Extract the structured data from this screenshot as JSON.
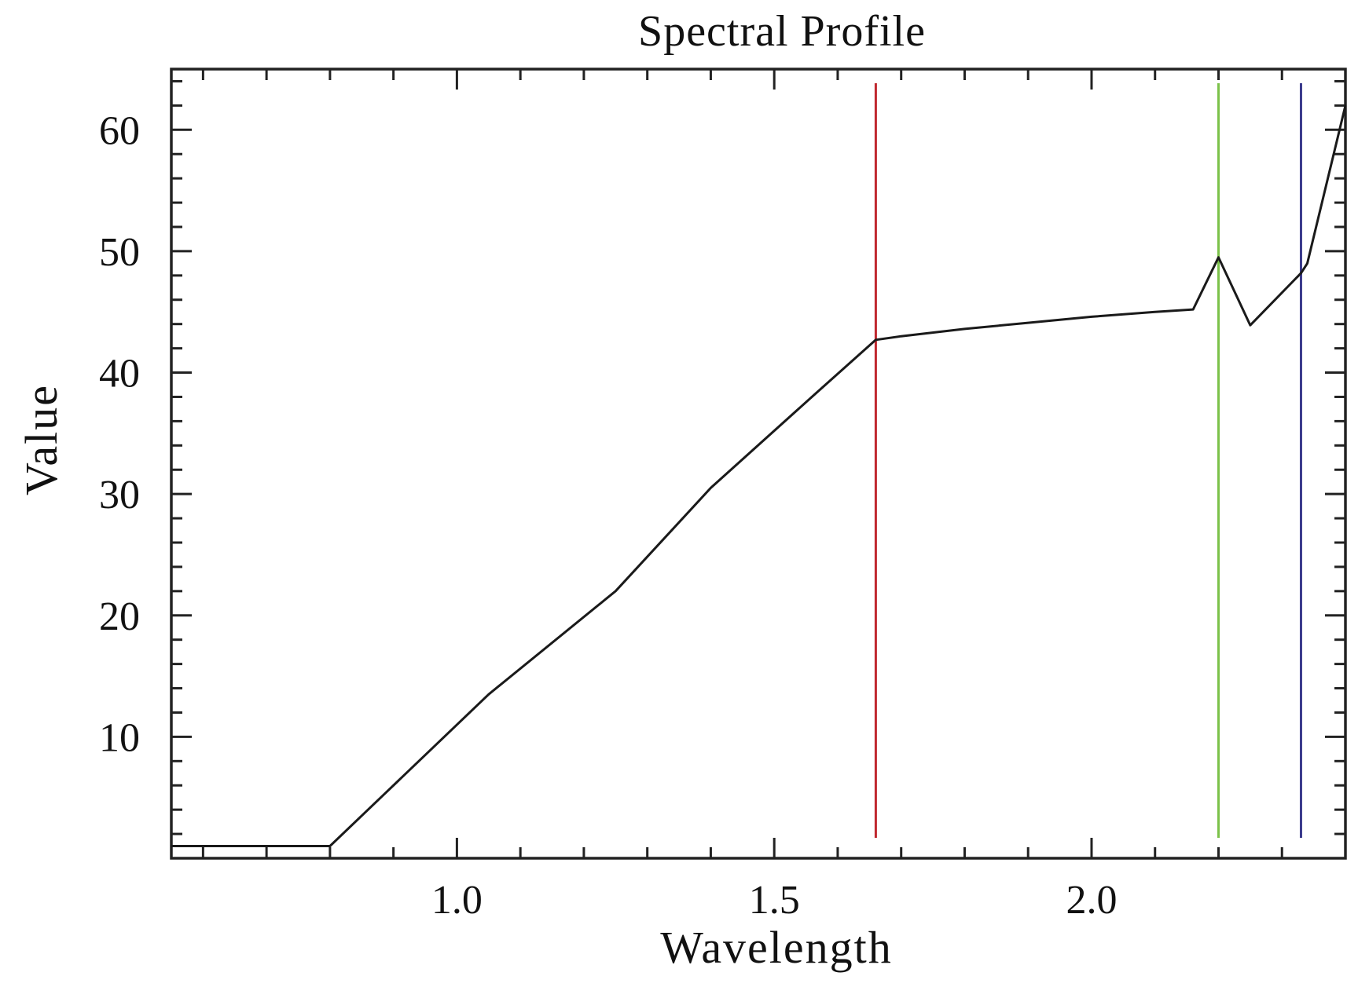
{
  "chart_data": {
    "type": "line",
    "title": "Spectral Profile",
    "xlabel": "Wavelength",
    "ylabel": "Value",
    "xlim": [
      0.55,
      2.4
    ],
    "ylim": [
      0,
      65
    ],
    "x_ticks": [
      1.0,
      1.5,
      2.0
    ],
    "x_tick_labels": [
      "1.0",
      "1.5",
      "2.0"
    ],
    "y_ticks": [
      10,
      20,
      30,
      40,
      50,
      60
    ],
    "y_tick_labels": [
      "10",
      "20",
      "30",
      "40",
      "50",
      "60"
    ],
    "x_minor_step": 0.1,
    "y_minor_step": 2,
    "grid": false,
    "series": [
      {
        "color": "#1a1a1a",
        "x": [
          0.55,
          0.8,
          0.88,
          1.05,
          1.25,
          1.4,
          1.57,
          1.66,
          1.7,
          1.8,
          1.9,
          2.0,
          2.1,
          2.16,
          2.2,
          2.25,
          2.33,
          2.34,
          2.4
        ],
        "y": [
          1.0,
          1.0,
          5.0,
          13.5,
          22.0,
          30.5,
          38.5,
          42.7,
          43.0,
          43.6,
          44.1,
          44.6,
          45.0,
          45.2,
          49.5,
          43.9,
          48.2,
          49.0,
          62.0
        ]
      }
    ],
    "vertical_markers": [
      {
        "x": 1.66,
        "color": "#c0282f"
      },
      {
        "x": 2.2,
        "color": "#7cc24a"
      },
      {
        "x": 2.33,
        "color": "#3a3a8c"
      }
    ]
  }
}
